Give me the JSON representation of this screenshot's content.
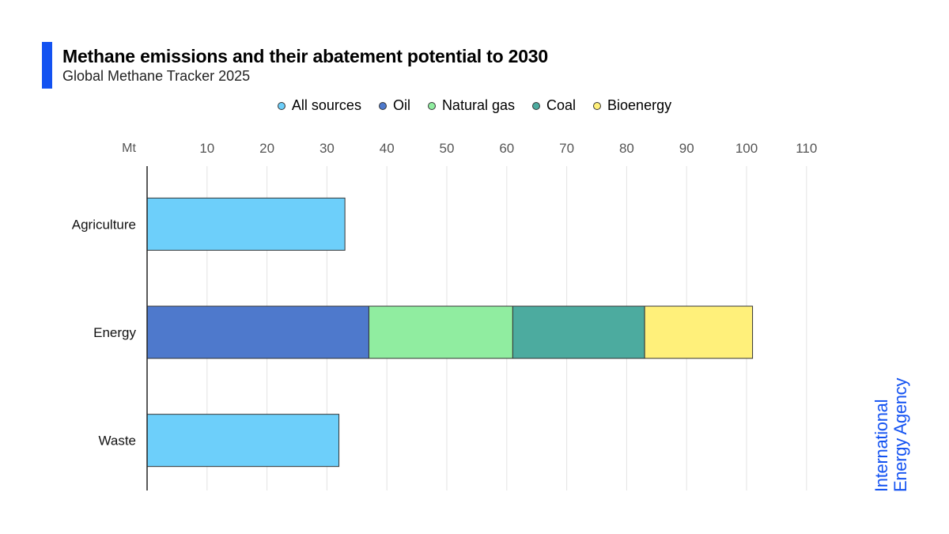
{
  "header": {
    "title": "Methane emissions and their abatement potential to 2030",
    "subtitle": "Global Methane Tracker 2025"
  },
  "brand": {
    "line1": "International",
    "line2": "Energy Agency"
  },
  "colors": {
    "accent": "#1352f1",
    "all_sources": "#6dcffa",
    "oil": "#4e79cc",
    "natural_gas": "#90eda0",
    "coal": "#4cab9f",
    "bioenergy": "#fff07a"
  },
  "chart_data": {
    "type": "bar",
    "orientation": "horizontal",
    "stacked": true,
    "unit_label": "Mt",
    "categories": [
      "Agriculture",
      "Energy",
      "Waste"
    ],
    "series": [
      {
        "name": "All sources",
        "color": "#6dcffa",
        "values": [
          33,
          0,
          32
        ]
      },
      {
        "name": "Oil",
        "color": "#4e79cc",
        "values": [
          0,
          37,
          0
        ]
      },
      {
        "name": "Natural gas",
        "color": "#90eda0",
        "values": [
          0,
          24,
          0
        ]
      },
      {
        "name": "Coal",
        "color": "#4cab9f",
        "values": [
          0,
          22,
          0
        ]
      },
      {
        "name": "Bioenergy",
        "color": "#fff07a",
        "values": [
          0,
          18,
          0
        ]
      }
    ],
    "xlim": [
      0,
      110
    ],
    "xticks": [
      10,
      20,
      30,
      40,
      50,
      60,
      70,
      80,
      90,
      100,
      110
    ],
    "grid": true,
    "legend_position": "top"
  }
}
